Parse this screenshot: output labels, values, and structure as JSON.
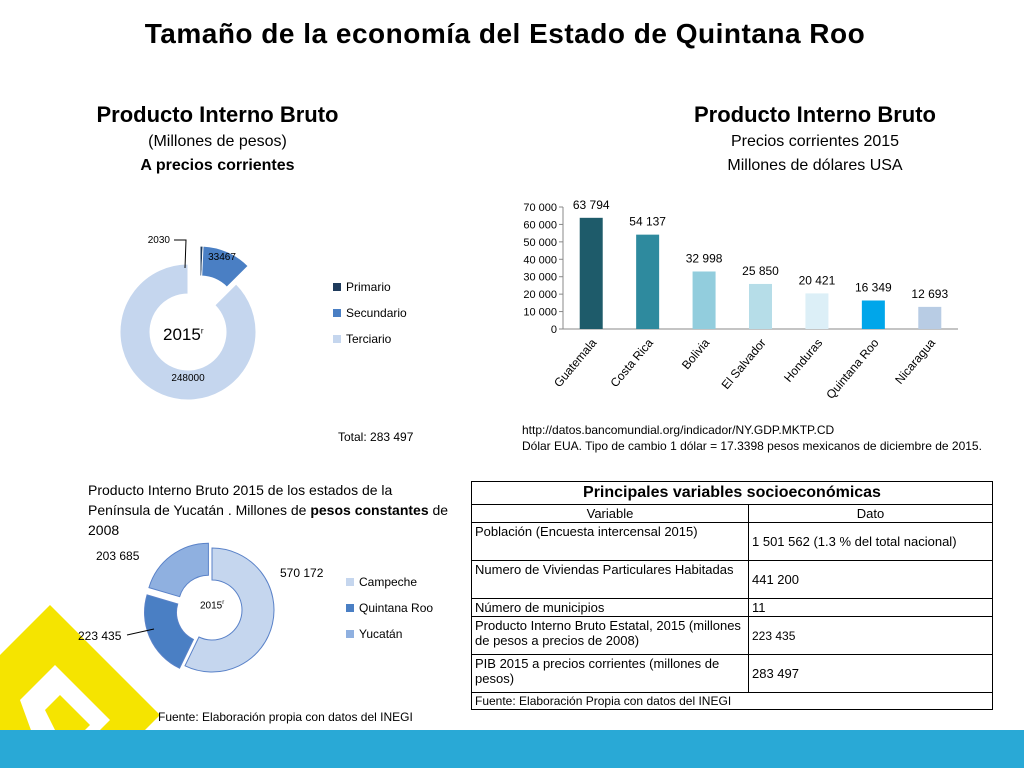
{
  "title": "Tamaño de la economía del Estado de Quintana Roo",
  "left_header": {
    "title": "Producto Interno Bruto",
    "line1": "(Millones de pesos)",
    "line2": "A precios corrientes"
  },
  "right_header": {
    "title": "Producto Interno Bruto",
    "line1": "Precios corrientes 2015",
    "line2": "Millones de dólares USA"
  },
  "donut1": {
    "center_label": "2015",
    "center_sup": "r",
    "total_text": "Total:  283 497"
  },
  "donut2": {
    "caption_part1": "Producto Interno Bruto 2015 de los estados de la Península de Yucatán . Millones de ",
    "caption_bold": "pesos constantes",
    "caption_part2": " de 2008",
    "center_label": "2015",
    "center_sup": "r",
    "source": "Fuente: Elaboración propia con datos del INEGI"
  },
  "source_text": {
    "url": "http://datos.bancomundial.org/indicador/NY.GDP.MKTP.CD",
    "note": "Dólar EUA. Tipo de cambio 1 dólar = 17.3398 pesos mexicanos de diciembre de 2015."
  },
  "table": {
    "title": "Principales variables socioeconómicas",
    "col1": "Variable",
    "col2": "Dato",
    "rows": [
      {
        "variable": "Población (Encuesta intercensal 2015)",
        "dato": "1 501 562 (1.3 % del total nacional)"
      },
      {
        "variable": "Numero de Viviendas  Particulares Habitadas",
        "dato": "441 200"
      },
      {
        "variable": "Número de municipios",
        "dato": "11"
      },
      {
        "variable": "Producto Interno Bruto Estatal, 2015 (millones de pesos a precios de 2008)",
        "dato": "223 435"
      },
      {
        "variable": "PIB 2015 a precios corrientes  (millones de pesos)",
        "dato": "283 497"
      }
    ],
    "footer": "Fuente: Elaboración Propia con datos del INEGI"
  },
  "chart_data": [
    {
      "type": "pie",
      "donut": true,
      "categories": [
        "Primario",
        "Secundario",
        "Terciario"
      ],
      "values": [
        2030,
        33467,
        248000
      ],
      "data_labels": [
        "2030",
        "33467",
        "248000"
      ],
      "colors": [
        "#1f3b5c",
        "#4a7fc4",
        "#c5d6ee"
      ],
      "legend_position": "right"
    },
    {
      "type": "bar",
      "categories": [
        "Guatemala",
        "Costa Rica",
        "Bolivia",
        "El Salvador",
        "Honduras",
        "Quintana Roo",
        "Nicaragua"
      ],
      "values": [
        63794,
        54137,
        32998,
        25850,
        20421,
        16349,
        12693
      ],
      "data_labels": [
        "63 794",
        "54 137",
        "32 998",
        "25 850",
        "20 421",
        "16 349",
        "12 693"
      ],
      "colors": [
        "#1e5b6a",
        "#2e8a9e",
        "#92cddd",
        "#b6dde8",
        "#dcefF7",
        "#00a6ea",
        "#b8cce4"
      ],
      "ylim": [
        0,
        70000
      ],
      "yticks": [
        "0",
        "10 000",
        "20 000",
        "30 000",
        "40 000",
        "50 000",
        "60 000",
        "70 000"
      ],
      "grid": false
    },
    {
      "type": "pie",
      "donut": true,
      "categories": [
        "Campeche",
        "Quintana Roo",
        "Yucatán"
      ],
      "values": [
        570172,
        223435,
        203685
      ],
      "data_labels": [
        "570 172",
        "223 435",
        "203 685"
      ],
      "colors": [
        "#c5d6ee",
        "#4a7fc4",
        "#8fb0e0"
      ],
      "legend_position": "right"
    }
  ]
}
